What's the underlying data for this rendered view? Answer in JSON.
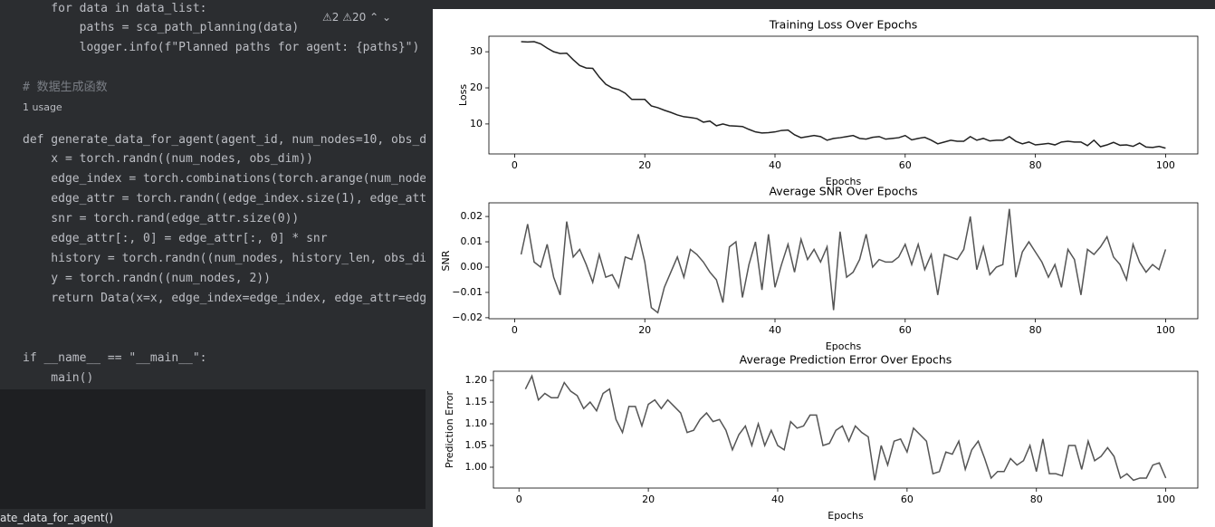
{
  "editor": {
    "lines": [
      "    for data in data_list:",
      "        paths = sca_path_planning(data)",
      "        logger.info(f\"Planned paths for agent: {paths}\")",
      "# 数据生成函数",
      "def generate_data_for_agent(agent_id, num_nodes=10, obs_d",
      "    x = torch.randn((num_nodes, obs_dim))",
      "    edge_index = torch.combinations(torch.arange(num_node",
      "    edge_attr = torch.randn((edge_index.size(1), edge_att",
      "    snr = torch.rand(edge_attr.size(0))",
      "    edge_attr[:, 0] = edge_attr[:, 0] * snr",
      "    history = torch.randn((num_nodes, history_len, obs_di",
      "    y = torch.randn((num_nodes, 2))",
      "    return Data(x=x, edge_index=edge_index, edge_attr=edg",
      "if __name__ == \"__main__\":",
      "    main()"
    ],
    "usage": "1 usage",
    "warnings": [
      "2",
      "20"
    ],
    "status": "ate_data_for_agent()"
  },
  "chart_data": [
    {
      "type": "line",
      "title": "Training Loss Over Epochs",
      "xlabel": "Epochs",
      "ylabel": "Loss",
      "color": "#222222",
      "x": [
        1,
        2,
        3,
        4,
        5,
        6,
        7,
        8,
        9,
        10,
        11,
        12,
        13,
        14,
        15,
        16,
        17,
        18,
        19,
        20,
        21,
        22,
        23,
        24,
        25,
        26,
        27,
        28,
        29,
        30,
        31,
        32,
        33,
        34,
        35,
        36,
        37,
        38,
        39,
        40,
        41,
        42,
        43,
        44,
        45,
        46,
        47,
        48,
        49,
        50,
        51,
        52,
        53,
        54,
        55,
        56,
        57,
        58,
        59,
        60,
        61,
        62,
        63,
        64,
        65,
        66,
        67,
        68,
        69,
        70,
        71,
        72,
        73,
        74,
        75,
        76,
        77,
        78,
        79,
        80,
        81,
        82,
        83,
        84,
        85,
        86,
        87,
        88,
        89,
        90,
        91,
        92,
        93,
        94,
        95,
        96,
        97,
        98,
        99,
        100
      ],
      "values": [
        32.8,
        32.7,
        32.8,
        32.2,
        31.0,
        30.0,
        29.5,
        29.6,
        27.8,
        26.2,
        25.5,
        25.4,
        23.0,
        21.0,
        20.0,
        19.5,
        18.5,
        16.8,
        16.8,
        16.8,
        15.0,
        14.5,
        13.8,
        13.2,
        12.5,
        12.0,
        11.8,
        11.5,
        10.5,
        10.8,
        9.5,
        10.0,
        9.5,
        9.4,
        9.3,
        8.5,
        7.8,
        7.5,
        7.6,
        7.8,
        8.2,
        8.3,
        7.0,
        6.2,
        6.5,
        6.8,
        6.5,
        5.5,
        6.0,
        6.2,
        6.5,
        6.8,
        6.0,
        5.8,
        6.3,
        6.5,
        5.8,
        6.0,
        6.2,
        6.8,
        5.6,
        6.0,
        6.3,
        5.5,
        4.5,
        5.0,
        5.5,
        5.2,
        5.2,
        6.5,
        5.5,
        6.0,
        5.3,
        5.5,
        5.5,
        6.5,
        5.2,
        4.5,
        5.0,
        4.2,
        4.4,
        4.6,
        4.2,
        5.0,
        5.2,
        5.0,
        5.0,
        4.0,
        5.5,
        3.7,
        4.2,
        4.9,
        4.1,
        4.2,
        3.8,
        4.7,
        3.6,
        3.5,
        3.8,
        3.3
      ],
      "xlim": [
        -3.95,
        104.95
      ],
      "xticks": [
        0,
        20,
        40,
        60,
        80,
        100
      ],
      "ylim": [
        1.7,
        34.3
      ],
      "yticks": [
        10,
        20,
        30
      ]
    },
    {
      "type": "line",
      "title": "Average SNR Over Epochs",
      "xlabel": "Epochs",
      "ylabel": "SNR",
      "color": "#555555",
      "x": [
        1,
        2,
        3,
        4,
        5,
        6,
        7,
        8,
        9,
        10,
        11,
        12,
        13,
        14,
        15,
        16,
        17,
        18,
        19,
        20,
        21,
        22,
        23,
        24,
        25,
        26,
        27,
        28,
        29,
        30,
        31,
        32,
        33,
        34,
        35,
        36,
        37,
        38,
        39,
        40,
        41,
        42,
        43,
        44,
        45,
        46,
        47,
        48,
        49,
        50,
        51,
        52,
        53,
        54,
        55,
        56,
        57,
        58,
        59,
        60,
        61,
        62,
        63,
        64,
        65,
        66,
        67,
        68,
        69,
        70,
        71,
        72,
        73,
        74,
        75,
        76,
        77,
        78,
        79,
        80,
        81,
        82,
        83,
        84,
        85,
        86,
        87,
        88,
        89,
        90,
        91,
        92,
        93,
        94,
        95,
        96,
        97,
        98,
        99,
        100
      ],
      "values": [
        0.005,
        0.017,
        0.002,
        0,
        0.009,
        -0.004,
        -0.011,
        0.018,
        0.004,
        0.007,
        0.001,
        -0.006,
        0.005,
        -0.004,
        -0.003,
        -0.008,
        0.004,
        0.003,
        0.013,
        0.002,
        -0.016,
        -0.018,
        -0.008,
        -0.002,
        0.004,
        -0.004,
        0.007,
        0.005,
        0.002,
        -0.002,
        -0.005,
        -0.014,
        0.008,
        0.01,
        -0.012,
        0.001,
        0.01,
        -0.009,
        0.013,
        -0.008,
        0.001,
        0.009,
        -0.002,
        0.011,
        0.003,
        0.007,
        0.002,
        0.008,
        -0.017,
        0.014,
        -0.004,
        -0.002,
        0.003,
        0.013,
        0,
        0.003,
        0.002,
        0.002,
        0.004,
        0.009,
        0.001,
        0.009,
        -0.001,
        0.005,
        -0.011,
        0.005,
        0.004,
        0.003,
        0.007,
        0.02,
        -0.001,
        0.008,
        -0.003,
        0,
        0.001,
        0.023,
        -0.004,
        0.006,
        0.01,
        0.006,
        0.002,
        -0.004,
        0.001,
        -0.008,
        0.007,
        0.003,
        -0.011,
        0.007,
        0.005,
        0.008,
        0.012,
        0.004,
        0.001,
        -0.005,
        0.009,
        0.002,
        -0.002,
        0.001,
        -0.001,
        0.007
      ],
      "xlim": [
        -3.95,
        104.95
      ],
      "xticks": [
        0,
        20,
        40,
        60,
        80,
        100
      ],
      "ylim": [
        -0.0204,
        0.0254
      ],
      "yticks": [
        {
          "value": -0.02,
          "label": "−0.02"
        },
        {
          "value": -0.01,
          "label": "−0.01"
        },
        {
          "value": 0,
          "label": "0.00"
        },
        0.01,
        0.02
      ]
    },
    {
      "type": "line",
      "title": "Average Prediction Error Over Epochs",
      "xlabel": "Epochs",
      "ylabel": "Prediction Error",
      "color": "#555555",
      "x": [
        1,
        2,
        3,
        4,
        5,
        6,
        7,
        8,
        9,
        10,
        11,
        12,
        13,
        14,
        15,
        16,
        17,
        18,
        19,
        20,
        21,
        22,
        23,
        24,
        25,
        26,
        27,
        28,
        29,
        30,
        31,
        32,
        33,
        34,
        35,
        36,
        37,
        38,
        39,
        40,
        41,
        42,
        43,
        44,
        45,
        46,
        47,
        48,
        49,
        50,
        51,
        52,
        53,
        54,
        55,
        56,
        57,
        58,
        59,
        60,
        61,
        62,
        63,
        64,
        65,
        66,
        67,
        68,
        69,
        70,
        71,
        72,
        73,
        74,
        75,
        76,
        77,
        78,
        79,
        80,
        81,
        82,
        83,
        84,
        85,
        86,
        87,
        88,
        89,
        90,
        91,
        92,
        93,
        94,
        95,
        96,
        97,
        98,
        99,
        100
      ],
      "values": [
        1.18,
        1.21,
        1.155,
        1.17,
        1.16,
        1.16,
        1.195,
        1.175,
        1.165,
        1.135,
        1.15,
        1.13,
        1.17,
        1.18,
        1.11,
        1.08,
        1.14,
        1.14,
        1.095,
        1.145,
        1.155,
        1.135,
        1.155,
        1.14,
        1.125,
        1.08,
        1.085,
        1.11,
        1.125,
        1.105,
        1.11,
        1.085,
        1.04,
        1.075,
        1.095,
        1.05,
        1.1,
        1.05,
        1.085,
        1.05,
        1.04,
        1.105,
        1.09,
        1.095,
        1.12,
        1.12,
        1.05,
        1.055,
        1.085,
        1.095,
        1.06,
        1.095,
        1.08,
        1.07,
        0.97,
        1.05,
        1.005,
        1.06,
        1.065,
        1.035,
        1.09,
        1.075,
        1.06,
        0.985,
        0.99,
        1.035,
        1.03,
        1.06,
        0.995,
        1.04,
        1.06,
        1.02,
        0.975,
        0.99,
        0.99,
        1.02,
        1.005,
        1.015,
        1.05,
        0.99,
        1.065,
        0.985,
        0.985,
        0.98,
        1.05,
        1.05,
        0.995,
        1.06,
        1.015,
        1.025,
        1.045,
        1.025,
        0.975,
        0.985,
        0.97,
        0.975,
        0.975,
        1.005,
        1.01,
        0.975
      ],
      "xlim": [
        -3.95,
        104.95
      ],
      "xticks": [
        0,
        20,
        40,
        60,
        80,
        100
      ],
      "ylim": [
        0.952,
        1.221
      ],
      "yticks": [
        {
          "value": 1.0,
          "label": "1.00"
        },
        1.05,
        {
          "value": 1.1,
          "label": "1.10"
        },
        1.15,
        {
          "value": 1.2,
          "label": "1.20"
        }
      ]
    }
  ]
}
